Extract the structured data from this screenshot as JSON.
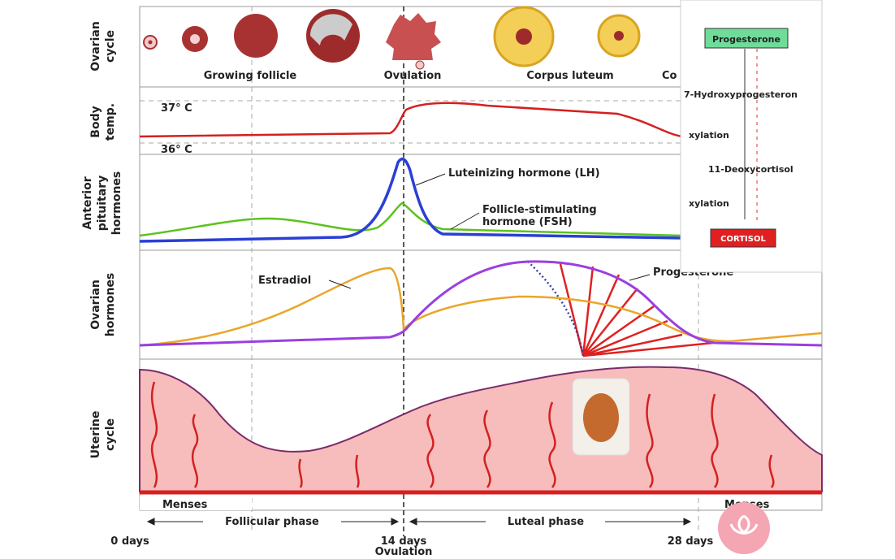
{
  "row_labels": [
    [
      "Ovarian",
      "cycle"
    ],
    [
      "Body",
      "temp."
    ],
    [
      "Anterior",
      "pituitary",
      "hormones"
    ],
    [
      "Ovarian",
      "hormones"
    ],
    [
      "Uterine",
      "cycle"
    ]
  ],
  "ovarian": {
    "growing": "Growing follicle",
    "ovulation": "Ovulation",
    "luteum": "Corpus luteum",
    "cut": "Co"
  },
  "temp": {
    "high": "37° C",
    "low": "36° C"
  },
  "pituitary": {
    "lh": "Luteinizing hormone (LH)",
    "fsh": [
      "Follicle-stimulating",
      "hormone (FSH)"
    ]
  },
  "hormones": {
    "estradiol": "Estradiol",
    "progesterone": "Progesterone"
  },
  "uterine": {
    "menses_left": "Menses",
    "menses_right": "Menses"
  },
  "phases": {
    "follicular": "Follicular phase",
    "luteal": "Luteal phase"
  },
  "days": {
    "start": "0 days",
    "mid": "14 days",
    "mid_sub": "Ovulation",
    "end": "28 days"
  },
  "overlay": {
    "top": "Progesterone",
    "step1": "7-Hydroxyprogesteron",
    "step2": "xylation",
    "step3": "11-Deoxycortisol",
    "step4": "xylation",
    "result": "CORTISOL"
  }
}
